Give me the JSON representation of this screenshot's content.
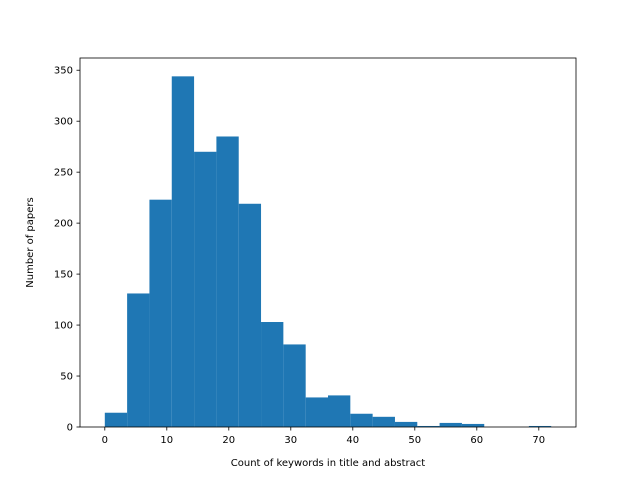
{
  "chart_data": {
    "type": "bar",
    "title": "",
    "xlabel": "Count of keywords in title and abstract",
    "ylabel": "Number of papers",
    "bins": [
      [
        0,
        3.6
      ],
      [
        3.6,
        7.2
      ],
      [
        7.2,
        10.8
      ],
      [
        10.8,
        14.4
      ],
      [
        14.4,
        18.0
      ],
      [
        18.0,
        21.6
      ],
      [
        21.6,
        25.2
      ],
      [
        25.2,
        28.8
      ],
      [
        28.8,
        32.4
      ],
      [
        32.4,
        36.0
      ],
      [
        36.0,
        39.6
      ],
      [
        39.6,
        43.2
      ],
      [
        43.2,
        46.8
      ],
      [
        46.8,
        50.4
      ],
      [
        50.4,
        54.0
      ],
      [
        54.0,
        57.6
      ],
      [
        57.6,
        61.2
      ],
      [
        61.2,
        64.8
      ],
      [
        64.8,
        68.4
      ],
      [
        68.4,
        72.0
      ]
    ],
    "values": [
      14,
      131,
      223,
      344,
      270,
      285,
      219,
      103,
      81,
      29,
      31,
      13,
      10,
      5,
      1,
      4,
      3,
      0,
      0,
      1
    ],
    "xlim": [
      -4,
      76
    ],
    "ylim": [
      0,
      362
    ],
    "xticks": [
      0,
      10,
      20,
      30,
      40,
      50,
      60,
      70
    ],
    "yticks": [
      0,
      50,
      100,
      150,
      200,
      250,
      300,
      350
    ],
    "bar_color": "#1f77b4",
    "grid": false,
    "legend": "none"
  }
}
